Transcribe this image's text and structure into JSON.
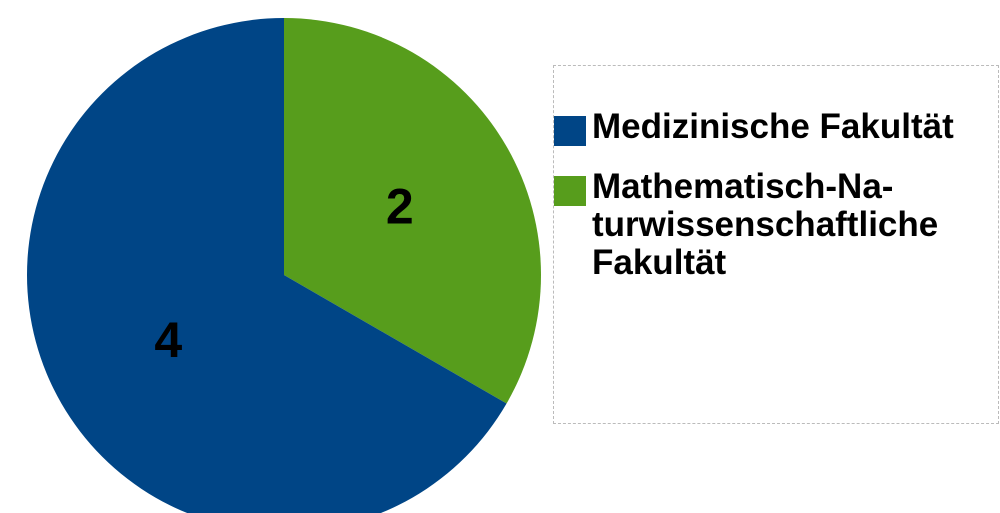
{
  "chart_data": {
    "type": "pie",
    "categories": [
      "Medizinische Fakul­tät",
      "Mathematisch-Na­turwissenschaft­liche Fakultät"
    ],
    "values": [
      4,
      2
    ],
    "colors": [
      "#004586",
      "#579d1c"
    ],
    "start_angle": 0,
    "direction": "counterclockwise-from-last",
    "legend": "right"
  }
}
